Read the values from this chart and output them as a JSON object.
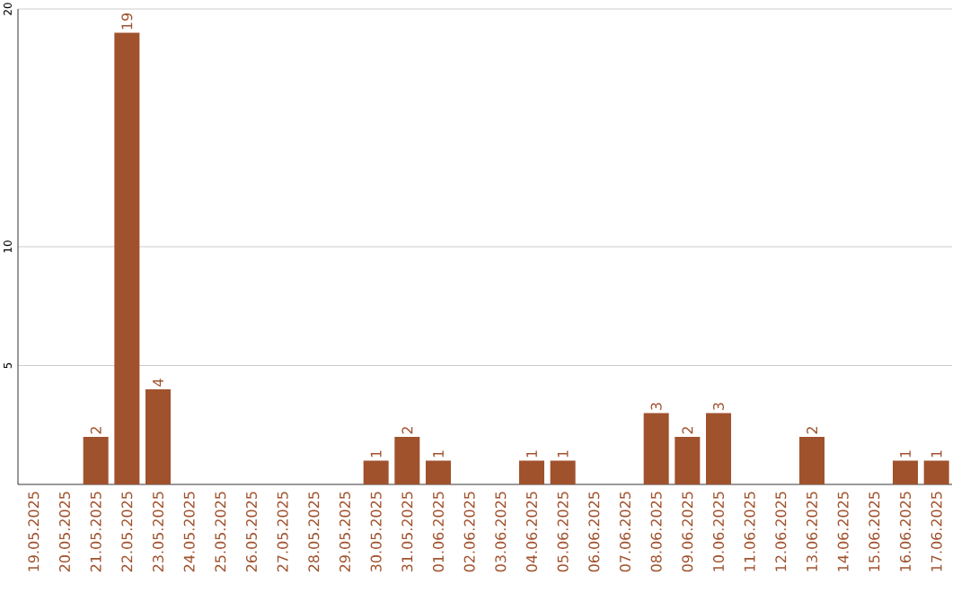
{
  "chart_data": {
    "type": "bar",
    "categories": [
      "19.05.2025",
      "20.05.2025",
      "21.05.2025",
      "22.05.2025",
      "23.05.2025",
      "24.05.2025",
      "25.05.2025",
      "26.05.2025",
      "27.05.2025",
      "28.05.2025",
      "29.05.2025",
      "30.05.2025",
      "31.05.2025",
      "01.06.2025",
      "02.06.2025",
      "03.06.2025",
      "04.06.2025",
      "05.06.2025",
      "06.06.2025",
      "07.06.2025",
      "08.06.2025",
      "09.06.2025",
      "10.06.2025",
      "11.06.2025",
      "12.06.2025",
      "13.06.2025",
      "14.06.2025",
      "15.06.2025",
      "16.06.2025",
      "17.06.2025"
    ],
    "values": [
      0,
      0,
      2,
      19,
      4,
      0,
      0,
      0,
      0,
      0,
      0,
      1,
      2,
      1,
      0,
      0,
      1,
      1,
      0,
      0,
      3,
      2,
      3,
      0,
      0,
      2,
      0,
      0,
      1,
      1
    ],
    "value_labels": [
      null,
      null,
      "2",
      "19",
      "4",
      null,
      null,
      null,
      null,
      null,
      null,
      "1",
      "2",
      "1",
      null,
      null,
      "1",
      "1",
      null,
      null,
      "3",
      "2",
      "3",
      null,
      null,
      "2",
      null,
      null,
      "1",
      "1"
    ],
    "color": "#a0522d",
    "ylim": [
      0,
      20
    ],
    "yticks": [
      5,
      10,
      20
    ],
    "grid": "y"
  }
}
